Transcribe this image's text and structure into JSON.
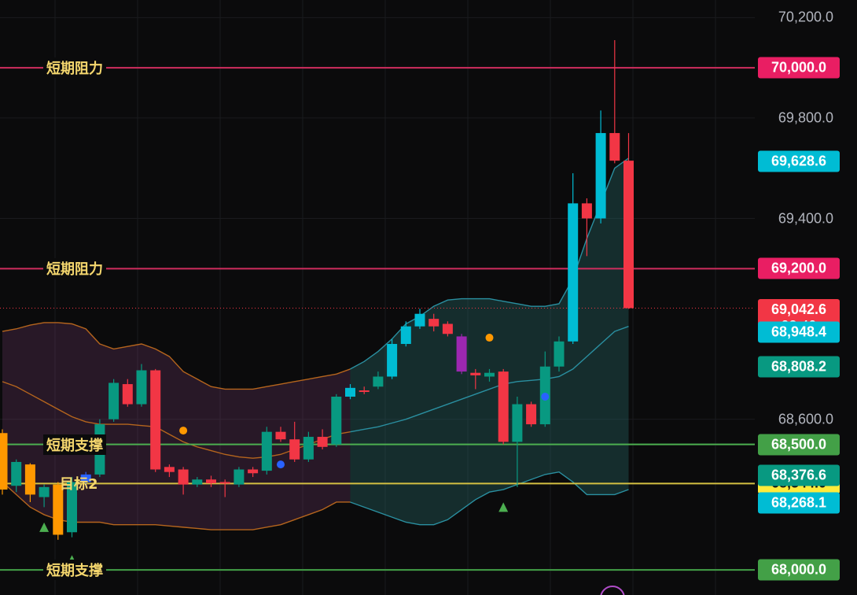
{
  "chart_data": {
    "type": "candlestick",
    "ylim": [
      67900,
      70270
    ],
    "y_ticks": [
      "70,200.0",
      "69,800.0",
      "69,400.0",
      "68,600.0"
    ],
    "y_tick_values": [
      70200,
      69800,
      69400,
      68600
    ],
    "price_lines": [
      {
        "label": "短期阻力",
        "value": 70000,
        "value_text": "70,000.0",
        "color": "#d02d5e",
        "badge": "#e91e63"
      },
      {
        "label": "短期阻力",
        "value": 69200,
        "value_text": "69,200.0",
        "color": "#d02d5e",
        "badge": "#e91e63"
      },
      {
        "label": "短期支撑",
        "value": 68500,
        "value_text": "68,500.0",
        "color": "#4caf50",
        "badge": "#43a047"
      },
      {
        "label": "目标2",
        "value": 68344,
        "value_text": "68,344.0",
        "color": "#d4c042",
        "badge": "#ffeb3b"
      },
      {
        "label": "短期支撑",
        "value": 68000,
        "value_text": "68,000.0",
        "color": "#43a047",
        "badge": "#43a047"
      }
    ],
    "badges": [
      {
        "value": 69628.6,
        "text": "69,628.6",
        "color": "#00bcd4"
      },
      {
        "value": 69042.6,
        "text": "69,042.6",
        "sub": "03:49",
        "color": "#f23645"
      },
      {
        "value": 68948.4,
        "text": "68,948.4",
        "color": "#00bcd4"
      },
      {
        "value": 68808.2,
        "text": "68,808.2",
        "color": "#089981"
      },
      {
        "value": 68376.6,
        "text": "68,376.6",
        "color": "#089981"
      },
      {
        "value": 68268.1,
        "text": "68,268.1",
        "color": "#00bcd4"
      }
    ],
    "candles": [
      {
        "o": 68320,
        "c": 68545,
        "h": 68560,
        "l": 68300,
        "color": "orange"
      },
      {
        "o": 68335,
        "c": 68430,
        "h": 68440,
        "l": 68310,
        "color": "teal"
      },
      {
        "o": 68420,
        "c": 68300,
        "h": 68425,
        "l": 68270,
        "color": "orange"
      },
      {
        "o": 68290,
        "c": 68330,
        "h": 68340,
        "l": 68250,
        "color": "teal"
      },
      {
        "o": 68340,
        "c": 68140,
        "h": 68350,
        "l": 68120,
        "color": "orange"
      },
      {
        "o": 68150,
        "c": 68350,
        "h": 68370,
        "l": 68130,
        "color": "teal"
      },
      {
        "o": 68350,
        "c": 68380,
        "h": 68390,
        "l": 68330,
        "color": "blue"
      },
      {
        "o": 68380,
        "c": 68580,
        "h": 68600,
        "l": 68370,
        "color": "teal"
      },
      {
        "o": 68600,
        "c": 68745,
        "h": 68760,
        "l": 68590,
        "color": "teal"
      },
      {
        "o": 68740,
        "c": 68660,
        "h": 68760,
        "l": 68650,
        "color": "red"
      },
      {
        "o": 68660,
        "c": 68795,
        "h": 68820,
        "l": 68650,
        "color": "teal"
      },
      {
        "o": 68795,
        "c": 68400,
        "h": 68800,
        "l": 68390,
        "color": "red"
      },
      {
        "o": 68410,
        "c": 68390,
        "h": 68420,
        "l": 68370,
        "color": "red"
      },
      {
        "o": 68400,
        "c": 68340,
        "h": 68410,
        "l": 68300,
        "color": "red"
      },
      {
        "o": 68340,
        "c": 68360,
        "h": 68370,
        "l": 68330,
        "color": "teal"
      },
      {
        "o": 68360,
        "c": 68345,
        "h": 68375,
        "l": 68330,
        "color": "red"
      },
      {
        "o": 68350,
        "c": 68345,
        "h": 68360,
        "l": 68290,
        "color": "red"
      },
      {
        "o": 68340,
        "c": 68400,
        "h": 68410,
        "l": 68330,
        "color": "teal"
      },
      {
        "o": 68400,
        "c": 68385,
        "h": 68410,
        "l": 68370,
        "color": "red"
      },
      {
        "o": 68395,
        "c": 68550,
        "h": 68570,
        "l": 68380,
        "color": "teal"
      },
      {
        "o": 68550,
        "c": 68520,
        "h": 68570,
        "l": 68510,
        "color": "red"
      },
      {
        "o": 68520,
        "c": 68440,
        "h": 68590,
        "l": 68430,
        "color": "red"
      },
      {
        "o": 68440,
        "c": 68530,
        "h": 68550,
        "l": 68430,
        "color": "teal"
      },
      {
        "o": 68530,
        "c": 68490,
        "h": 68560,
        "l": 68480,
        "color": "red"
      },
      {
        "o": 68500,
        "c": 68690,
        "h": 68700,
        "l": 68490,
        "color": "teal"
      },
      {
        "o": 68690,
        "c": 68725,
        "h": 68740,
        "l": 68680,
        "color": "cyan"
      },
      {
        "o": 68710,
        "c": 68715,
        "h": 68730,
        "l": 68700,
        "color": "red"
      },
      {
        "o": 68730,
        "c": 68770,
        "h": 68790,
        "l": 68720,
        "color": "teal"
      },
      {
        "o": 68770,
        "c": 68900,
        "h": 68920,
        "l": 68760,
        "color": "cyan"
      },
      {
        "o": 68900,
        "c": 68970,
        "h": 68990,
        "l": 68890,
        "color": "cyan"
      },
      {
        "o": 68970,
        "c": 69020,
        "h": 69040,
        "l": 68960,
        "color": "cyan"
      },
      {
        "o": 69000,
        "c": 68970,
        "h": 69020,
        "l": 68950,
        "color": "red"
      },
      {
        "o": 68980,
        "c": 68940,
        "h": 68990,
        "l": 68930,
        "color": "red"
      },
      {
        "o": 68930,
        "c": 68790,
        "h": 68940,
        "l": 68780,
        "color": "purple"
      },
      {
        "o": 68785,
        "c": 68775,
        "h": 68800,
        "l": 68720,
        "color": "red"
      },
      {
        "o": 68770,
        "c": 68785,
        "h": 68800,
        "l": 68750,
        "color": "teal"
      },
      {
        "o": 68790,
        "c": 68510,
        "h": 68800,
        "l": 68500,
        "color": "red"
      },
      {
        "o": 68510,
        "c": 68660,
        "h": 68690,
        "l": 68330,
        "color": "teal"
      },
      {
        "o": 68660,
        "c": 68580,
        "h": 68670,
        "l": 68570,
        "color": "red"
      },
      {
        "o": 68580,
        "c": 68810,
        "h": 68870,
        "l": 68570,
        "color": "teal"
      },
      {
        "o": 68810,
        "c": 68910,
        "h": 68930,
        "l": 68790,
        "color": "teal"
      },
      {
        "o": 68910,
        "c": 69460,
        "h": 69580,
        "l": 68900,
        "color": "cyan"
      },
      {
        "o": 69460,
        "c": 69400,
        "h": 69480,
        "l": 69250,
        "color": "red"
      },
      {
        "o": 69400,
        "c": 69740,
        "h": 69830,
        "l": 69380,
        "color": "cyan"
      },
      {
        "o": 69740,
        "c": 69630,
        "h": 70110,
        "l": 69620,
        "color": "red"
      },
      {
        "o": 69630,
        "c": 69042.6,
        "h": 69740,
        "l": 69040,
        "color": "red"
      }
    ],
    "bb_upper": [
      68950,
      68960,
      68975,
      68985,
      68985,
      68980,
      68960,
      68900,
      68880,
      68890,
      68900,
      68880,
      68850,
      68790,
      68760,
      68730,
      68720,
      68720,
      68720,
      68730,
      68740,
      68750,
      68760,
      68770,
      68780,
      68800,
      68830,
      68870,
      68920,
      68980,
      69010,
      69050,
      69075,
      69080,
      69080,
      69080,
      69070,
      69060,
      69050,
      69050,
      69060,
      69160,
      69320,
      69460,
      69600,
      69640
    ],
    "bb_lower": [
      68350,
      68300,
      68250,
      68220,
      68200,
      68190,
      68190,
      68190,
      68180,
      68180,
      68180,
      68180,
      68175,
      68170,
      68165,
      68160,
      68160,
      68160,
      68160,
      68170,
      68180,
      68200,
      68220,
      68240,
      68270,
      68270,
      68250,
      68230,
      68210,
      68190,
      68180,
      68180,
      68200,
      68240,
      68280,
      68310,
      68320,
      68340,
      68360,
      68380,
      68390,
      68350,
      68300,
      68300,
      68300,
      68320
    ],
    "bb_mid": [
      68750,
      68730,
      68700,
      68670,
      68640,
      68610,
      68590,
      68580,
      68580,
      68580,
      68575,
      68570,
      68540,
      68510,
      68490,
      68475,
      68460,
      68450,
      68445,
      68450,
      68460,
      68480,
      68500,
      68520,
      68540,
      68550,
      68560,
      68570,
      68585,
      68600,
      68620,
      68640,
      68660,
      68680,
      68700,
      68720,
      68740,
      68750,
      68755,
      68760,
      68770,
      68800,
      68850,
      68900,
      68950,
      68970
    ]
  }
}
